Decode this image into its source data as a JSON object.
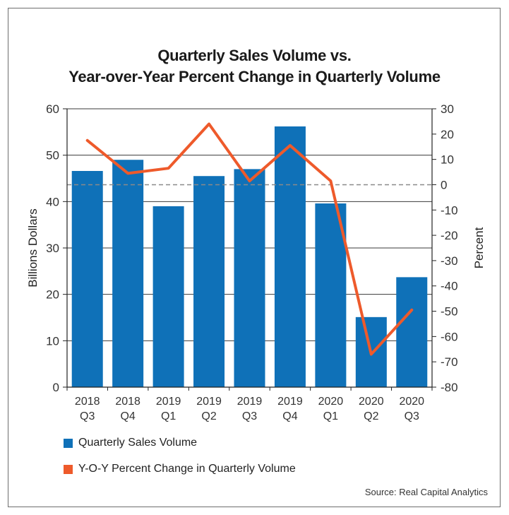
{
  "chart_data": {
    "type": "bar+line",
    "title_line1": "Quarterly Sales Volume vs.",
    "title_line2": "Year-over-Year Percent Change in Quarterly Volume",
    "categories": [
      {
        "year": "2018",
        "quarter": "Q3"
      },
      {
        "year": "2018",
        "quarter": "Q4"
      },
      {
        "year": "2019",
        "quarter": "Q1"
      },
      {
        "year": "2019",
        "quarter": "Q2"
      },
      {
        "year": "2019",
        "quarter": "Q3"
      },
      {
        "year": "2019",
        "quarter": "Q4"
      },
      {
        "year": "2020",
        "quarter": "Q1"
      },
      {
        "year": "2020",
        "quarter": "Q2"
      },
      {
        "year": "2020",
        "quarter": "Q3"
      }
    ],
    "series": [
      {
        "name": "Quarterly Sales Volume",
        "type": "bar",
        "axis": "left",
        "color": "#0f71b8",
        "values": [
          46.6,
          49.0,
          39.0,
          45.5,
          47.0,
          56.2,
          39.6,
          15.1,
          23.7
        ]
      },
      {
        "name": "Y-O-Y Percent Change in Quarterly Volume",
        "type": "line",
        "axis": "right",
        "color": "#ee5a2b",
        "values": [
          17.5,
          4.5,
          6.5,
          24.0,
          1.5,
          15.5,
          1.5,
          -67.0,
          -49.5
        ]
      }
    ],
    "left_axis": {
      "label": "Billions Dollars",
      "min": 0,
      "max": 60,
      "ticks": [
        0,
        10,
        20,
        30,
        40,
        50,
        60
      ]
    },
    "right_axis": {
      "label": "Percent",
      "min": -80,
      "max": 30,
      "ticks": [
        30,
        20,
        10,
        0,
        -10,
        -20,
        -30,
        -40,
        -50,
        -60,
        -70,
        -80
      ]
    },
    "zero_reference_line": true,
    "grid": "horizontal",
    "legend_position": "bottom-left"
  },
  "source": "Source: Real Capital Analytics"
}
